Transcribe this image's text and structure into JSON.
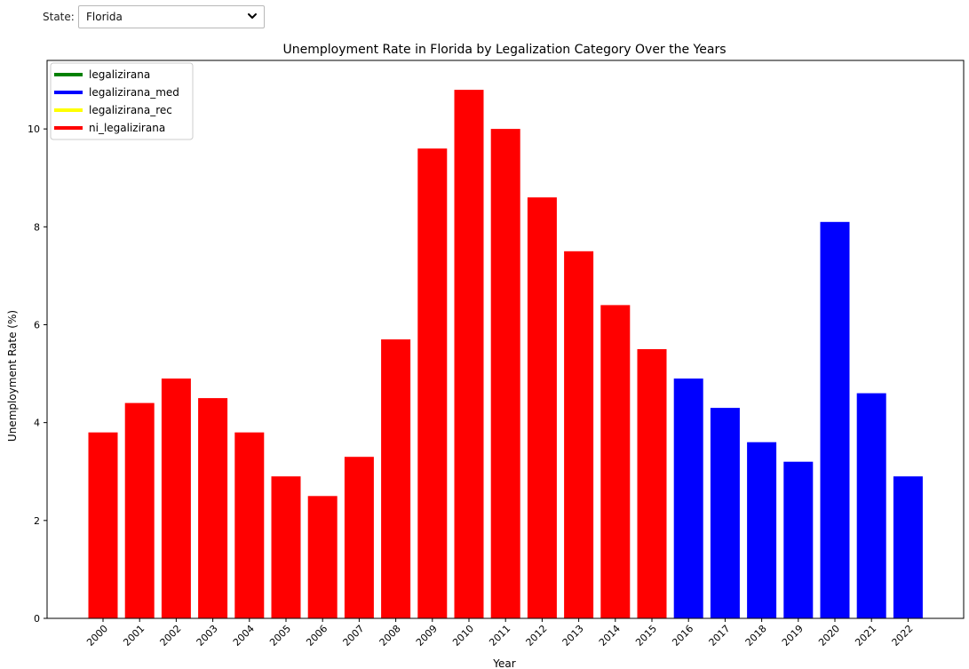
{
  "controls": {
    "state_label": "State:",
    "state_value": "Florida",
    "dropdown_icon": "chevron-down-icon"
  },
  "chart_data": {
    "type": "bar",
    "title": "Unemployment Rate in Florida by Legalization Category Over the Years",
    "xlabel": "Year",
    "ylabel": "Unemployment Rate (%)",
    "ylim": [
      0,
      11.4
    ],
    "yticks": [
      0,
      2,
      4,
      6,
      8,
      10
    ],
    "grid": false,
    "legend_position": "top-left",
    "categories": [
      "2000",
      "2001",
      "2002",
      "2003",
      "2004",
      "2005",
      "2006",
      "2007",
      "2008",
      "2009",
      "2010",
      "2011",
      "2012",
      "2013",
      "2014",
      "2015",
      "2016",
      "2017",
      "2018",
      "2019",
      "2020",
      "2021",
      "2022"
    ],
    "values": [
      3.8,
      4.4,
      4.9,
      4.5,
      3.8,
      2.9,
      2.5,
      3.3,
      5.7,
      9.6,
      10.8,
      10.0,
      8.6,
      7.5,
      6.4,
      5.5,
      4.9,
      4.3,
      3.6,
      3.2,
      8.1,
      4.6,
      2.9
    ],
    "bar_category": [
      "ni_legalizirana",
      "ni_legalizirana",
      "ni_legalizirana",
      "ni_legalizirana",
      "ni_legalizirana",
      "ni_legalizirana",
      "ni_legalizirana",
      "ni_legalizirana",
      "ni_legalizirana",
      "ni_legalizirana",
      "ni_legalizirana",
      "ni_legalizirana",
      "ni_legalizirana",
      "ni_legalizirana",
      "ni_legalizirana",
      "ni_legalizirana",
      "legalizirana_med",
      "legalizirana_med",
      "legalizirana_med",
      "legalizirana_med",
      "legalizirana_med",
      "legalizirana_med",
      "legalizirana_med"
    ],
    "legend": [
      {
        "name": "legalizirana",
        "color": "#008000"
      },
      {
        "name": "legalizirana_med",
        "color": "#0000ff"
      },
      {
        "name": "legalizirana_rec",
        "color": "#ffff00"
      },
      {
        "name": "ni_legalizirana",
        "color": "#ff0000"
      }
    ]
  }
}
